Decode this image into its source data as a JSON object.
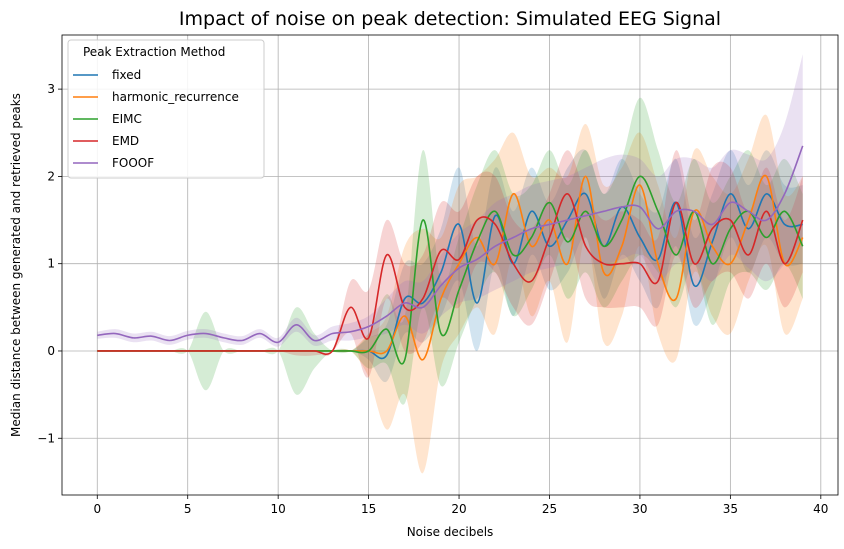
{
  "chart_data": {
    "type": "line",
    "title": "Impact of noise on peak detection: Simulated EEG Signal",
    "xlabel": "Noise decibels",
    "ylabel": "Median distance between generated and retrieved peaks",
    "xlim": [
      -1.95,
      40.95
    ],
    "ylim": [
      -1.65,
      3.62
    ],
    "xticks": [
      0,
      5,
      10,
      15,
      20,
      25,
      30,
      35,
      40
    ],
    "yticks": [
      -1,
      0,
      1,
      2,
      3
    ],
    "grid": true,
    "legend": {
      "title": "Peak Extraction Method",
      "placement": "top-left"
    },
    "x": [
      0,
      1,
      2,
      3,
      4,
      5,
      6,
      7,
      8,
      9,
      10,
      11,
      12,
      13,
      14,
      15,
      16,
      17,
      18,
      19,
      20,
      21,
      22,
      23,
      24,
      25,
      26,
      27,
      28,
      29,
      30,
      31,
      32,
      33,
      34,
      35,
      36,
      37,
      38,
      39
    ],
    "series": [
      {
        "name": "fixed",
        "color": "#1f77b4",
        "values": [
          0,
          0,
          0,
          0,
          0,
          0,
          0,
          0,
          0,
          0,
          0,
          0,
          0,
          0,
          0,
          0,
          -0.05,
          0.6,
          0.55,
          0.9,
          1.45,
          0.55,
          1.55,
          1.0,
          1.6,
          1.2,
          1.5,
          1.8,
          1.2,
          1.65,
          1.3,
          1.05,
          1.7,
          0.75,
          1.25,
          1.8,
          1.4,
          1.8,
          1.45,
          1.45
        ],
        "upper": [
          0,
          0,
          0,
          0,
          0,
          0,
          0,
          0,
          0,
          0,
          0,
          0,
          0,
          0,
          0,
          0.15,
          0.3,
          1.0,
          1.0,
          1.4,
          2.1,
          1.2,
          2.1,
          1.6,
          2.1,
          1.7,
          2.1,
          2.3,
          1.8,
          2.2,
          1.8,
          1.6,
          2.2,
          1.3,
          1.8,
          2.3,
          1.9,
          2.3,
          1.9,
          1.9
        ],
        "lower": [
          0,
          0,
          0,
          0,
          0,
          0,
          0,
          0,
          0,
          0,
          0,
          0,
          0,
          0,
          0,
          -0.1,
          -0.35,
          0.2,
          0.1,
          0.4,
          0.8,
          0.0,
          1.0,
          0.4,
          1.1,
          0.7,
          0.9,
          1.3,
          0.6,
          1.1,
          0.8,
          0.5,
          1.2,
          0.3,
          0.7,
          1.3,
          0.9,
          1.3,
          1.0,
          1.0
        ]
      },
      {
        "name": "harmonic_recurrence",
        "color": "#ff7f0e",
        "values": [
          0,
          0,
          0,
          0,
          0,
          0,
          0,
          0,
          0,
          0,
          0,
          0,
          0,
          0,
          0,
          0,
          0,
          0.4,
          -0.1,
          0.6,
          1.0,
          1.3,
          1.0,
          1.8,
          1.2,
          1.5,
          1.0,
          2.0,
          0.9,
          1.2,
          1.9,
          1.0,
          0.6,
          1.6,
          1.2,
          1.0,
          1.5,
          2.0,
          1.0,
          1.3
        ],
        "upper": [
          0,
          0,
          0,
          0,
          0,
          0,
          0,
          0,
          0,
          0,
          0,
          0,
          0,
          0,
          0,
          0.2,
          0.4,
          1.2,
          1.4,
          1.3,
          1.9,
          2.0,
          2.2,
          2.5,
          2.0,
          2.1,
          2.0,
          2.6,
          1.9,
          2.1,
          2.5,
          1.9,
          1.3,
          2.3,
          2.0,
          1.8,
          2.2,
          2.7,
          1.8,
          2.0
        ],
        "lower": [
          0,
          0,
          0,
          0,
          0,
          0,
          0,
          0,
          0,
          0,
          0,
          0,
          0,
          0,
          0,
          -0.3,
          -0.9,
          -0.5,
          -1.4,
          -0.2,
          0.2,
          0.5,
          0.2,
          1.1,
          0.4,
          0.8,
          0.1,
          1.3,
          0.1,
          0.4,
          1.2,
          0.2,
          -0.1,
          0.9,
          0.4,
          0.2,
          0.8,
          1.2,
          0.2,
          0.6
        ]
      },
      {
        "name": "EIMC",
        "color": "#2ca02c",
        "values": [
          0,
          0,
          0,
          0,
          0,
          0,
          0,
          0,
          0,
          0,
          0,
          0,
          0,
          0,
          0,
          0,
          0.25,
          -0.1,
          1.5,
          0.2,
          0.7,
          1.25,
          1.6,
          1.1,
          1.3,
          1.7,
          1.25,
          1.6,
          1.2,
          1.5,
          2.0,
          1.6,
          1.1,
          1.6,
          1.0,
          1.4,
          1.6,
          1.3,
          1.6,
          1.2
        ],
        "upper": [
          0,
          0,
          0,
          0,
          0,
          0,
          0.45,
          0,
          0,
          0,
          0,
          0.5,
          0.2,
          0,
          0,
          0.2,
          0.65,
          0.4,
          2.3,
          0.8,
          1.3,
          1.9,
          2.3,
          1.8,
          1.9,
          2.3,
          1.9,
          2.3,
          1.8,
          2.2,
          2.9,
          2.3,
          1.7,
          2.2,
          1.7,
          2.0,
          2.3,
          1.9,
          2.2,
          1.8
        ],
        "lower": [
          0,
          0,
          0,
          0,
          0,
          0,
          -0.45,
          0,
          0,
          0,
          0,
          -0.5,
          -0.2,
          0,
          0,
          -0.2,
          -0.15,
          -0.6,
          0.5,
          -0.4,
          0.1,
          0.6,
          0.9,
          0.4,
          0.7,
          1.1,
          0.6,
          0.9,
          0.5,
          0.8,
          1.1,
          0.9,
          0.5,
          1.0,
          0.3,
          0.8,
          0.9,
          0.7,
          1.0,
          0.6
        ]
      },
      {
        "name": "EMD",
        "color": "#d62728",
        "values": [
          0,
          0,
          0,
          0,
          0,
          0,
          0,
          0,
          0,
          0,
          0,
          0,
          0,
          0,
          0.5,
          0.15,
          1.1,
          0.5,
          0.6,
          1.15,
          1.05,
          1.5,
          1.45,
          1.0,
          0.8,
          1.3,
          1.8,
          1.2,
          1.0,
          1.0,
          1.0,
          0.8,
          1.7,
          1.0,
          1.4,
          1.5,
          1.1,
          1.6,
          1.0,
          1.5
        ],
        "upper": [
          0,
          0,
          0,
          0,
          0,
          0,
          0,
          0,
          0,
          0,
          0,
          0,
          0,
          0,
          0.8,
          0.7,
          1.5,
          1.0,
          1.1,
          1.7,
          1.6,
          2.0,
          2.0,
          1.5,
          1.4,
          1.8,
          2.3,
          1.8,
          1.5,
          1.6,
          1.5,
          1.3,
          2.3,
          1.5,
          2.1,
          2.1,
          1.6,
          2.1,
          1.5,
          2.0
        ],
        "lower": [
          0,
          0,
          0,
          0,
          0,
          0,
          0,
          0,
          0,
          0,
          0,
          -0.05,
          -0.05,
          0,
          0.2,
          -0.3,
          0.6,
          0.0,
          0.1,
          0.6,
          0.5,
          1.0,
          0.9,
          0.5,
          0.3,
          0.8,
          1.3,
          0.6,
          0.5,
          0.5,
          0.5,
          0.3,
          1.1,
          0.5,
          0.8,
          0.9,
          0.6,
          1.0,
          0.5,
          0.9
        ]
      },
      {
        "name": "FOOOF",
        "color": "#9467bd",
        "values": [
          0.18,
          0.2,
          0.15,
          0.17,
          0.12,
          0.18,
          0.2,
          0.15,
          0.12,
          0.2,
          0.1,
          0.3,
          0.12,
          0.2,
          0.22,
          0.28,
          0.4,
          0.55,
          0.5,
          0.75,
          0.95,
          1.05,
          1.2,
          1.3,
          1.4,
          1.45,
          1.5,
          1.55,
          1.6,
          1.65,
          1.65,
          1.4,
          1.6,
          1.6,
          1.45,
          1.7,
          1.6,
          1.5,
          1.8,
          2.35
        ],
        "upper": [
          0.22,
          0.25,
          0.2,
          0.22,
          0.17,
          0.23,
          0.25,
          0.2,
          0.17,
          0.25,
          0.15,
          0.38,
          0.18,
          0.28,
          0.32,
          0.4,
          0.6,
          0.8,
          0.8,
          1.1,
          1.35,
          1.5,
          1.7,
          1.8,
          1.9,
          1.95,
          2.0,
          2.1,
          2.2,
          2.25,
          2.2,
          2.0,
          2.2,
          2.2,
          2.1,
          2.3,
          2.25,
          2.2,
          2.6,
          3.4
        ],
        "lower": [
          0.14,
          0.15,
          0.1,
          0.12,
          0.07,
          0.13,
          0.15,
          0.1,
          0.07,
          0.15,
          0.05,
          0.22,
          0.06,
          0.12,
          0.12,
          0.16,
          0.2,
          0.3,
          0.2,
          0.4,
          0.55,
          0.6,
          0.7,
          0.8,
          0.9,
          0.95,
          1.0,
          1.0,
          1.0,
          1.05,
          1.1,
          0.8,
          1.0,
          1.0,
          0.8,
          1.1,
          0.95,
          0.8,
          1.0,
          1.3
        ]
      }
    ]
  }
}
